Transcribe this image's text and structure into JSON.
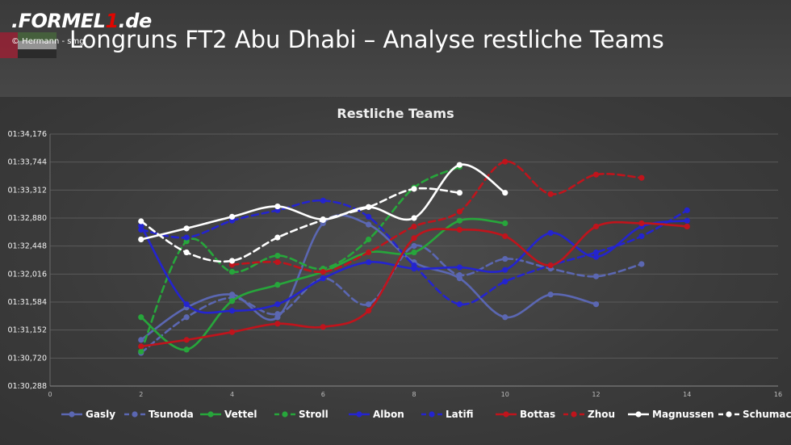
{
  "header": {
    "logo_main": ".FORMEL",
    "logo_accent": "1",
    "logo_tail": ".de",
    "credit": "© Hermann - smg",
    "title": "Longruns FT2 Abu Dhabi – Analyse restliche Teams"
  },
  "chart_data": {
    "type": "line",
    "title": "Restliche Teams",
    "xlabel": "",
    "ylabel": "",
    "xlim": [
      0,
      16
    ],
    "x_ticks": [
      "0",
      "2",
      "4",
      "6",
      "8",
      "10",
      "12",
      "14",
      "16"
    ],
    "ylim": [
      30.288,
      34.176
    ],
    "y_ticks": [
      "01:30,288",
      "01:30,720",
      "01:31,152",
      "01:31,584",
      "01:32,016",
      "01:32,448",
      "01:32,880",
      "01:33,312",
      "01:33,744",
      "01:34,176"
    ],
    "y_unit": "lap time (minutes:seconds,ms); values are seconds after 1:00",
    "grid": "horizontal",
    "legend_position": "bottom",
    "series": [
      {
        "name": "Gasly",
        "color": "#5b67b2",
        "dash": false,
        "x": [
          2,
          3,
          4,
          5,
          6,
          7,
          8,
          9,
          10,
          11,
          12
        ],
        "y": [
          31.0,
          31.5,
          31.7,
          31.35,
          32.8,
          32.78,
          32.2,
          31.95,
          31.35,
          31.7,
          31.55
        ]
      },
      {
        "name": "Tsunoda",
        "color": "#5b67b2",
        "dash": true,
        "x": [
          2,
          3,
          4,
          5,
          6,
          7,
          8,
          9,
          10,
          11,
          12,
          13
        ],
        "y": [
          30.8,
          31.35,
          31.65,
          31.4,
          31.95,
          31.55,
          32.45,
          32.0,
          32.25,
          32.1,
          31.98,
          32.17
        ]
      },
      {
        "name": "Vettel",
        "color": "#27a63b",
        "dash": false,
        "x": [
          2,
          3,
          4,
          5,
          6,
          7,
          8,
          9,
          10
        ],
        "y": [
          31.35,
          30.85,
          31.6,
          31.85,
          32.05,
          32.35,
          32.35,
          32.84,
          32.8
        ]
      },
      {
        "name": "Stroll",
        "color": "#27a63b",
        "dash": true,
        "x": [
          2,
          3,
          4,
          5,
          6,
          7,
          8,
          9
        ],
        "y": [
          30.82,
          32.52,
          32.05,
          32.3,
          32.1,
          32.55,
          33.35,
          33.67
        ]
      },
      {
        "name": "Albon",
        "color": "#2424cf",
        "dash": false,
        "x": [
          2,
          3,
          4,
          5,
          6,
          7,
          8,
          9,
          10,
          11,
          12,
          13,
          14
        ],
        "y": [
          32.76,
          31.55,
          31.45,
          31.55,
          31.95,
          32.2,
          32.1,
          32.12,
          32.08,
          32.65,
          32.28,
          32.75,
          32.84
        ]
      },
      {
        "name": "Latifi",
        "color": "#2424cf",
        "dash": true,
        "x": [
          2,
          3,
          4,
          5,
          6,
          7,
          8,
          9,
          10,
          11,
          12,
          13,
          14
        ],
        "y": [
          32.7,
          32.58,
          32.84,
          33.0,
          33.15,
          32.9,
          32.15,
          31.55,
          31.9,
          32.15,
          32.35,
          32.6,
          33.0
        ]
      },
      {
        "name": "Bottas",
        "color": "#c0141c",
        "dash": false,
        "x": [
          2,
          3,
          4,
          5,
          6,
          7,
          8,
          9,
          10,
          11,
          12,
          13,
          14
        ],
        "y": [
          30.9,
          31.0,
          31.12,
          31.25,
          31.2,
          31.45,
          32.57,
          32.7,
          32.6,
          32.15,
          32.75,
          32.8,
          32.75
        ]
      },
      {
        "name": "Zhou",
        "color": "#c0141c",
        "dash": true,
        "x": [
          4,
          5,
          6,
          7,
          8,
          9,
          10,
          11,
          12,
          13
        ],
        "y": [
          32.16,
          32.2,
          32.05,
          32.35,
          32.75,
          32.98,
          33.75,
          33.25,
          33.55,
          33.5
        ]
      },
      {
        "name": "Magnussen",
        "color": "#ffffff",
        "dash": false,
        "x": [
          2,
          3,
          4,
          5,
          6,
          7,
          8,
          9,
          10
        ],
        "y": [
          32.55,
          32.72,
          32.9,
          33.06,
          32.86,
          33.05,
          32.88,
          33.7,
          33.27
        ]
      },
      {
        "name": "Schumacher",
        "color": "#ffffff",
        "dash": true,
        "x": [
          2,
          3,
          4,
          5,
          6,
          7,
          8,
          9
        ],
        "y": [
          32.83,
          32.35,
          32.22,
          32.58,
          32.85,
          33.05,
          33.33,
          33.27
        ]
      }
    ]
  }
}
